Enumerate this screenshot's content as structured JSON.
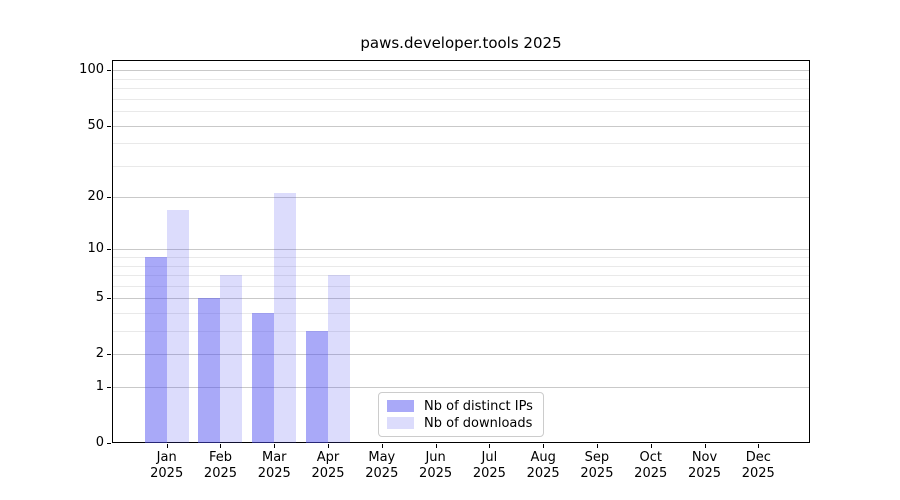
{
  "chart_data": {
    "type": "bar",
    "title": "paws.developer.tools 2025",
    "y_scale": "log1p",
    "ylim": [
      0,
      114
    ],
    "grid": "on",
    "legend_position": "lower-center-inside",
    "categories": [
      "Jan",
      "Feb",
      "Mar",
      "Apr",
      "May",
      "Jun",
      "Jul",
      "Aug",
      "Sep",
      "Oct",
      "Nov",
      "Dec"
    ],
    "year_label": "2025",
    "series": [
      {
        "name": "Nb of distinct IPs",
        "color": "rgba(80,80,240,0.49)",
        "color_solid": "#aaaaf7",
        "values": [
          9,
          5,
          4,
          3,
          0,
          0,
          0,
          0,
          0,
          0,
          0,
          0
        ]
      },
      {
        "name": "Nb of downloads",
        "color": "rgba(80,80,240,0.20)",
        "color_solid": "#dcdcfa",
        "values": [
          17,
          7,
          21,
          7,
          0,
          0,
          0,
          0,
          0,
          0,
          0,
          0
        ]
      }
    ],
    "y_major_ticks": [
      0,
      1,
      2,
      5,
      10,
      20,
      50,
      100
    ],
    "y_minor_ticks": [
      3,
      4,
      6,
      7,
      8,
      9,
      30,
      40,
      60,
      70,
      80,
      90
    ]
  }
}
